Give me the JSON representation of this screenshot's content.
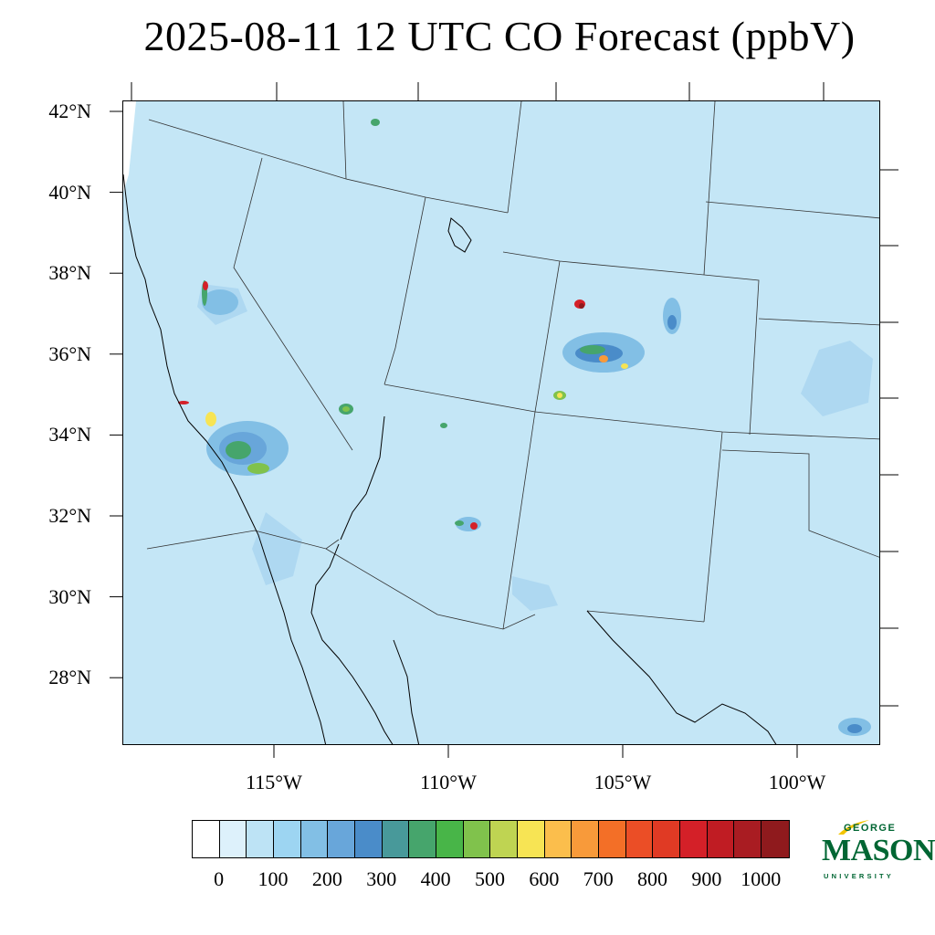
{
  "title": "2025-08-11 12 UTC CO Forecast (ppbV)",
  "map": {
    "variable": "CO",
    "units": "ppbV",
    "lat_labels": [
      {
        "text": "42°N",
        "lat": 42
      },
      {
        "text": "40°N",
        "lat": 40
      },
      {
        "text": "38°N",
        "lat": 38
      },
      {
        "text": "36°N",
        "lat": 36
      },
      {
        "text": "34°N",
        "lat": 34
      },
      {
        "text": "32°N",
        "lat": 32
      },
      {
        "text": "30°N",
        "lat": 30
      },
      {
        "text": "28°N",
        "lat": 28
      }
    ],
    "lon_labels": [
      {
        "text": "115°W",
        "lon": -115
      },
      {
        "text": "110°W",
        "lon": -110
      },
      {
        "text": "105°W",
        "lon": -105
      },
      {
        "text": "100°W",
        "lon": -100
      }
    ],
    "background_color": "#c4e6f6"
  },
  "colorbar": {
    "colors": [
      "#ffffff",
      "#ddf1fb",
      "#bde3f5",
      "#9dd5f2",
      "#82bfe5",
      "#68a6da",
      "#4a8cc9",
      "#48999a",
      "#46a56c",
      "#48b548",
      "#80c24c",
      "#bfd452",
      "#f7e454",
      "#fbbe4c",
      "#f89a3a",
      "#f36f27",
      "#eb4e26",
      "#e03a24",
      "#d42028",
      "#c01c23",
      "#a91c22",
      "#8f1a1d"
    ],
    "labels": [
      "0",
      "100",
      "200",
      "300",
      "400",
      "500",
      "600",
      "700",
      "800",
      "900",
      "1000"
    ]
  },
  "logo": {
    "line1": "GEORGE",
    "line2": "MASON",
    "line3": "UNIVERSITY",
    "color": "#006633",
    "accent": "#f2c400"
  }
}
